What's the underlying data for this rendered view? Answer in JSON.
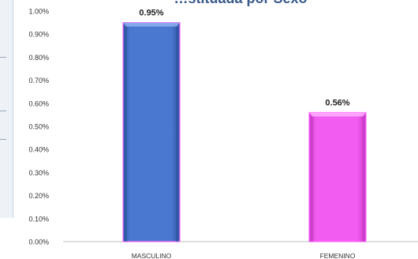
{
  "chart_data": {
    "type": "bar",
    "title": "…stituada por Sexo",
    "categories": [
      "MASCULINO",
      "FEMENINO"
    ],
    "values": [
      0.95,
      0.56
    ],
    "value_labels": [
      "0.95%",
      "0.56%"
    ],
    "y_ticks": [
      "0.00%",
      "0.10%",
      "0.20%",
      "0.30%",
      "0.40%",
      "0.50%",
      "0.60%",
      "0.70%",
      "0.80%",
      "0.90%",
      "1.00%"
    ],
    "ylim": [
      0,
      1.0
    ],
    "unit": "%",
    "grid": false,
    "colors": [
      "#4a78d0",
      "#f25cf0"
    ]
  }
}
